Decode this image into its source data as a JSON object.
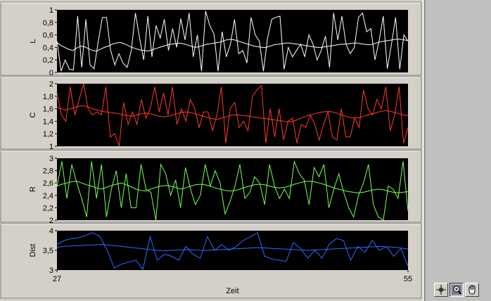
{
  "colors": {
    "background": "#d4d0c8",
    "plot_bg": "#000000",
    "L": "#ffffff",
    "C": "#ff3b2f",
    "R": "#7cff5a",
    "Dist": "#2e6bff"
  },
  "palette": {
    "tools": [
      "crosshair-cursor-icon",
      "zoom-icon",
      "pan-hand-icon"
    ]
  },
  "chart_data": [
    {
      "type": "line",
      "ylabel": "L",
      "ylim": [
        0,
        1
      ],
      "yticks": [
        "0",
        "0,2",
        "0,4",
        "0,6",
        "0,8",
        "1"
      ],
      "xlim": [
        27,
        55
      ],
      "series": [
        {
          "values": [
            0.5,
            0.02,
            0.2,
            0.05,
            0.04,
            0.9,
            0.08,
            0.85,
            0.12,
            0.06,
            0.5,
            0.88,
            0.88,
            0.35,
            0.12,
            0.3,
            0.15,
            0.08,
            0.35,
            0.95,
            0.55,
            0.2,
            0.9,
            0.25,
            0.75,
            0.55,
            0.85,
            0.35,
            0.7,
            0.4,
            0.86,
            0.52,
            0.95,
            0.25,
            0.6,
            0.02,
            0.98,
            0.75,
            0.62,
            0.02,
            0.65,
            0.25,
            0.45,
            0.85,
            0.3,
            0.35,
            0.15,
            0.88,
            0.6,
            0.5,
            0.02,
            0.55,
            0.85,
            0.88,
            0.9,
            0.05,
            0.4,
            0.25,
            0.35,
            0.45,
            0.25,
            0.6,
            0.45,
            0.2,
            0.35,
            0.58,
            0.08,
            0.95,
            0.52,
            0.9,
            0.45,
            0.3,
            0.4,
            0.88,
            0.95,
            0.65,
            0.7,
            0.2,
            0.5,
            0.9,
            0.06,
            0.45,
            0.88,
            0.05,
            0.6,
            0.5
          ]
        },
        {
          "values": [
            0.48,
            0.43,
            0.4,
            0.37,
            0.35,
            0.39,
            0.42,
            0.41,
            0.38,
            0.35,
            0.34,
            0.37,
            0.4,
            0.42,
            0.45,
            0.47,
            0.48,
            0.46,
            0.43,
            0.4,
            0.38,
            0.36,
            0.35,
            0.34,
            0.36,
            0.38,
            0.4,
            0.42,
            0.44,
            0.45,
            0.46,
            0.47,
            0.46,
            0.44,
            0.42,
            0.4,
            0.41,
            0.43,
            0.45,
            0.46,
            0.47,
            0.48,
            0.5,
            0.52,
            0.53,
            0.52,
            0.5,
            0.48,
            0.46,
            0.44,
            0.42,
            0.41,
            0.4,
            0.4,
            0.42,
            0.44,
            0.45,
            0.46,
            0.47,
            0.47,
            0.46,
            0.45,
            0.44,
            0.43,
            0.42,
            0.41,
            0.4,
            0.4,
            0.41,
            0.42,
            0.43,
            0.44,
            0.45,
            0.45,
            0.46,
            0.47,
            0.47,
            0.46,
            0.45,
            0.44,
            0.45,
            0.47,
            0.49,
            0.5,
            0.51,
            0.52,
            0.53,
            0.53,
            0.52,
            0.51
          ]
        }
      ]
    },
    {
      "type": "line",
      "ylabel": "C",
      "ylim": [
        1,
        2
      ],
      "yticks": [
        "1",
        "1,2",
        "1,4",
        "1,6",
        "1,8",
        "2"
      ],
      "xlim": [
        27,
        55
      ],
      "series": [
        {
          "values": [
            1.85,
            1.5,
            1.4,
            1.95,
            1.5,
            1.75,
            2.0,
            1.6,
            1.5,
            1.55,
            1.5,
            1.95,
            1.15,
            1.2,
            1.0,
            1.7,
            1.35,
            1.55,
            1.35,
            1.75,
            1.45,
            1.6,
            1.95,
            1.55,
            1.85,
            1.5,
            1.95,
            1.35,
            1.6,
            1.4,
            1.75,
            1.6,
            1.3,
            1.55,
            1.55,
            1.25,
            1.5,
            1.95,
            1.05,
            1.6,
            1.7,
            1.3,
            1.4,
            1.25,
            1.8,
            1.9,
            1.97,
            1.05,
            1.6,
            1.15,
            1.6,
            1.1,
            1.4,
            1.45,
            1.05,
            1.35,
            1.3,
            1.5,
            1.35,
            1.1,
            1.35,
            1.55,
            1.15,
            1.1,
            1.6,
            1.15,
            1.15,
            1.45,
            1.3,
            1.9,
            1.6,
            1.5,
            1.75,
            1.6,
            1.95,
            1.25,
            1.5,
            1.95,
            1.05,
            1.3
          ]
        },
        {
          "values": [
            1.62,
            1.6,
            1.58,
            1.6,
            1.62,
            1.64,
            1.65,
            1.63,
            1.6,
            1.58,
            1.56,
            1.55,
            1.54,
            1.53,
            1.52,
            1.5,
            1.49,
            1.48,
            1.5,
            1.52,
            1.53,
            1.52,
            1.5,
            1.48,
            1.47,
            1.48,
            1.5,
            1.52,
            1.54,
            1.55,
            1.54,
            1.52,
            1.5,
            1.48,
            1.46,
            1.44,
            1.43,
            1.45,
            1.47,
            1.49,
            1.5,
            1.5,
            1.49,
            1.48,
            1.47,
            1.46,
            1.45,
            1.44,
            1.43,
            1.42,
            1.41,
            1.4,
            1.39,
            1.4,
            1.42,
            1.45,
            1.48,
            1.5,
            1.52,
            1.54,
            1.55,
            1.56,
            1.55,
            1.53,
            1.5,
            1.48,
            1.46,
            1.45,
            1.46,
            1.48,
            1.5,
            1.52,
            1.54,
            1.56,
            1.57,
            1.56,
            1.54,
            1.52,
            1.5,
            1.49
          ]
        }
      ]
    },
    {
      "type": "line",
      "ylabel": "R",
      "ylim": [
        2,
        3
      ],
      "yticks": [
        "2",
        "2,2",
        "2,4",
        "2,6",
        "2,8",
        "3"
      ],
      "xlim": [
        27,
        55
      ],
      "series": [
        {
          "values": [
            2.55,
            2.95,
            2.35,
            2.9,
            2.6,
            2.35,
            2.05,
            2.95,
            2.35,
            2.9,
            2.05,
            2.5,
            2.8,
            2.2,
            2.75,
            2.2,
            2.2,
            2.9,
            2.5,
            2.45,
            2.0,
            2.9,
            2.75,
            2.4,
            2.65,
            2.2,
            2.85,
            2.5,
            2.25,
            2.4,
            2.9,
            2.55,
            2.8,
            2.6,
            2.1,
            2.3,
            2.55,
            2.9,
            2.35,
            2.45,
            2.7,
            2.6,
            2.25,
            2.9,
            2.55,
            2.35,
            2.5,
            2.35,
            2.95,
            2.75,
            2.65,
            2.25,
            2.85,
            2.7,
            2.9,
            2.2,
            2.5,
            2.75,
            2.45,
            2.2,
            2.05,
            2.4,
            2.6,
            2.9,
            2.25,
            2.05,
            2.0,
            2.55,
            2.5,
            2.35,
            2.95,
            2.15
          ]
        },
        {
          "values": [
            2.55,
            2.58,
            2.6,
            2.62,
            2.63,
            2.6,
            2.57,
            2.55,
            2.52,
            2.5,
            2.53,
            2.56,
            2.58,
            2.6,
            2.57,
            2.54,
            2.5,
            2.48,
            2.47,
            2.5,
            2.53,
            2.55,
            2.56,
            2.55,
            2.53,
            2.5,
            2.52,
            2.55,
            2.57,
            2.58,
            2.57,
            2.55,
            2.52,
            2.5,
            2.48,
            2.47,
            2.48,
            2.5,
            2.53,
            2.55,
            2.57,
            2.58,
            2.57,
            2.55,
            2.53,
            2.52,
            2.53,
            2.55,
            2.58,
            2.6,
            2.62,
            2.63,
            2.62,
            2.6,
            2.58,
            2.55,
            2.52,
            2.5,
            2.48,
            2.46,
            2.45,
            2.44,
            2.45,
            2.47,
            2.49,
            2.5,
            2.49,
            2.47,
            2.45,
            2.44,
            2.45,
            2.46
          ]
        }
      ]
    },
    {
      "type": "line",
      "xlabel": "Zeit",
      "ylabel": "Dist",
      "xlim": [
        27,
        55
      ],
      "xticks": [
        "27",
        "55"
      ],
      "ylim": [
        3,
        4
      ],
      "yticks": [
        "3",
        "3,5",
        "4"
      ],
      "series": [
        {
          "values": [
            3.65,
            3.75,
            3.8,
            3.82,
            3.88,
            3.95,
            3.85,
            3.5,
            3.05,
            3.15,
            3.2,
            3.25,
            3.02,
            3.85,
            3.25,
            3.4,
            3.35,
            3.25,
            3.6,
            3.4,
            3.3,
            3.85,
            3.5,
            3.65,
            3.5,
            3.6,
            3.75,
            3.85,
            3.95,
            3.35,
            3.28,
            3.25,
            3.22,
            3.7,
            3.55,
            3.3,
            3.5,
            3.3,
            3.65,
            3.8,
            3.75,
            3.25,
            3.6,
            3.45,
            3.75,
            3.5,
            3.6,
            3.35,
            3.55,
            3.1
          ]
        },
        {
          "values": [
            3.58,
            3.6,
            3.61,
            3.62,
            3.63,
            3.64,
            3.65,
            3.64,
            3.62,
            3.6,
            3.58,
            3.56,
            3.54,
            3.52,
            3.5,
            3.49,
            3.5,
            3.51,
            3.52,
            3.51,
            3.5,
            3.5,
            3.51,
            3.52,
            3.53,
            3.54,
            3.55,
            3.56,
            3.57,
            3.56,
            3.55,
            3.54,
            3.53,
            3.52,
            3.51,
            3.5,
            3.51,
            3.52,
            3.53,
            3.54,
            3.55,
            3.56,
            3.57,
            3.58,
            3.59,
            3.6,
            3.59,
            3.58,
            3.56,
            3.53
          ]
        }
      ]
    }
  ]
}
